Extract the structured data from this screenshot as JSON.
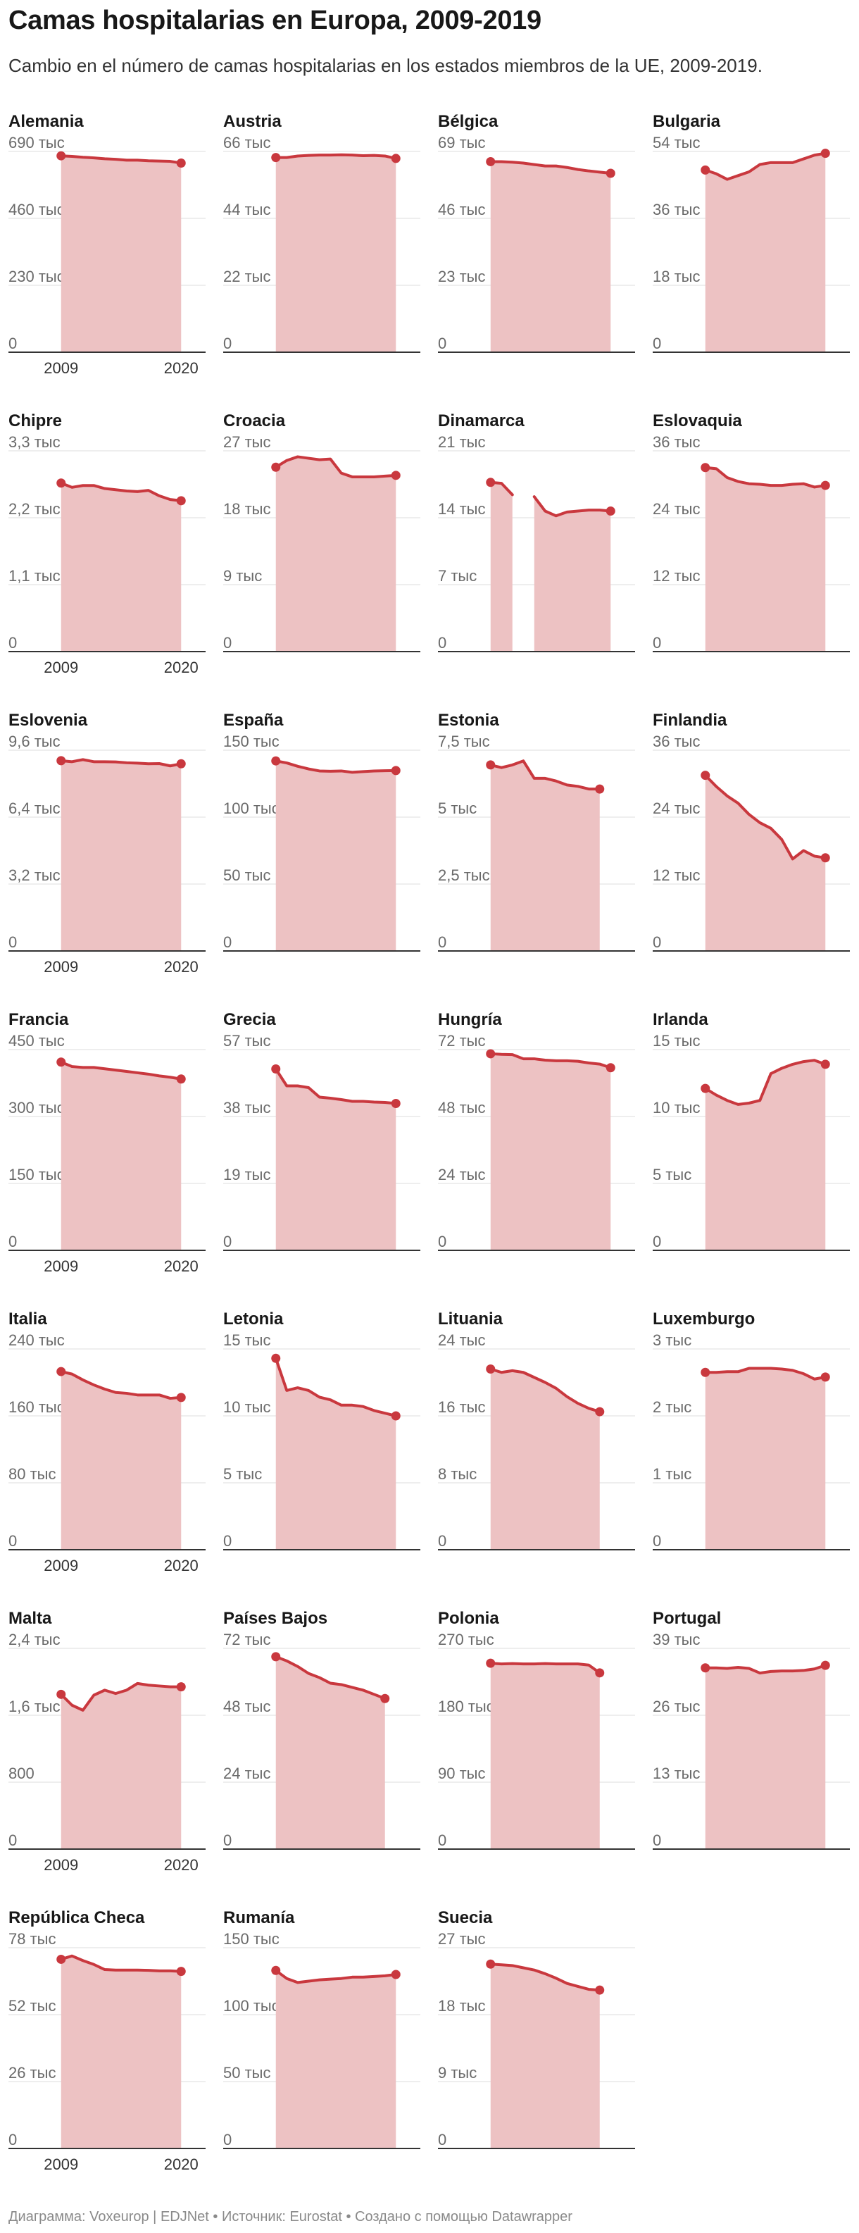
{
  "title": "Camas hospitalarias en Europa, 2009-2019",
  "subtitle": "Cambio en el número de camas hospitalarias en los estados miembros de la UE, 2009-2019.",
  "footer": "Диаграмма: Voxeurop | EDJNet • Источник: Eurostat • Создано с помощью Datawrapper",
  "colors": {
    "line": "#c9383e",
    "area": "#edc2c3",
    "grid": "#dcdcdc",
    "axis": "#333333"
  },
  "chart_data": {
    "type": "area",
    "layout": "small-multiples",
    "x_ticks": [
      "2009",
      "2020"
    ],
    "x_range": [
      2008.5,
      2020.5
    ],
    "panels": [
      {
        "name": "Alemania",
        "yticks": [
          "690 тыс",
          "460 тыс",
          "230 тыс",
          "0"
        ],
        "ymax": 690,
        "x": [
          2009,
          2010,
          2011,
          2012,
          2013,
          2014,
          2015,
          2016,
          2017,
          2018,
          2019,
          2020
        ],
        "y": [
          675,
          673,
          670,
          668,
          665,
          663,
          660,
          660,
          658,
          657,
          656,
          650
        ]
      },
      {
        "name": "Austria",
        "yticks": [
          "66 тыс",
          "44 тыс",
          "22 тыс",
          "0"
        ],
        "ymax": 66,
        "x": [
          2009,
          2010,
          2011,
          2012,
          2013,
          2014,
          2015,
          2016,
          2017,
          2018,
          2019,
          2020
        ],
        "y": [
          64,
          64,
          64.5,
          64.7,
          64.8,
          64.8,
          64.9,
          64.8,
          64.6,
          64.7,
          64.5,
          63.7
        ]
      },
      {
        "name": "Bélgica",
        "yticks": [
          "69 тыс",
          "46 тыс",
          "23 тыс",
          "0"
        ],
        "ymax": 69,
        "x": [
          2009,
          2010,
          2011,
          2012,
          2013,
          2014,
          2015,
          2016,
          2017,
          2018,
          2019,
          2020
        ],
        "y": [
          65.5,
          65.5,
          65.3,
          65,
          64.5,
          64,
          64,
          63.5,
          62.8,
          62.3,
          61.9,
          61.5
        ]
      },
      {
        "name": "Bulgaria",
        "yticks": [
          "54 тыс",
          "36 тыс",
          "18 тыс",
          "0"
        ],
        "ymax": 54,
        "x": [
          2009,
          2010,
          2011,
          2012,
          2013,
          2014,
          2015,
          2016,
          2017,
          2018,
          2019,
          2020
        ],
        "y": [
          49,
          48,
          46.5,
          47.5,
          48.5,
          50.5,
          51,
          51,
          51,
          52,
          53,
          53.5
        ]
      },
      {
        "name": "Chipre",
        "yticks": [
          "3,3 тыс",
          "2,2 тыс",
          "1,1 тыс",
          "0"
        ],
        "ymax": 3.3,
        "x": [
          2009,
          2010,
          2011,
          2012,
          2013,
          2014,
          2015,
          2016,
          2017,
          2018,
          2019,
          2020
        ],
        "y": [
          2.77,
          2.7,
          2.73,
          2.73,
          2.68,
          2.66,
          2.64,
          2.63,
          2.65,
          2.56,
          2.5,
          2.48
        ]
      },
      {
        "name": "Croacia",
        "yticks": [
          "27 тыс",
          "18 тыс",
          "9 тыс",
          "0"
        ],
        "ymax": 27,
        "x": [
          2009,
          2010,
          2011,
          2012,
          2013,
          2014,
          2015,
          2016,
          2017,
          2018,
          2019,
          2020
        ],
        "y": [
          24.8,
          25.7,
          26.2,
          26,
          25.8,
          25.9,
          24,
          23.5,
          23.5,
          23.5,
          23.6,
          23.7
        ]
      },
      {
        "name": "Dinamarca",
        "yticks": [
          "21 тыс",
          "14 тыс",
          "7 тыс",
          "0"
        ],
        "ymax": 21,
        "x": [
          2009,
          2010,
          2011,
          null,
          2013,
          2014,
          2015,
          2016,
          2017,
          2018,
          2019,
          2020
        ],
        "y": [
          17.7,
          17.6,
          16.4,
          null,
          16.2,
          14.7,
          14.2,
          14.6,
          14.7,
          14.8,
          14.8,
          14.7
        ]
      },
      {
        "name": "Eslovaquia",
        "yticks": [
          "36 тыс",
          "24 тыс",
          "12 тыс",
          "0"
        ],
        "ymax": 36,
        "x": [
          2009,
          2010,
          2011,
          2012,
          2013,
          2014,
          2015,
          2016,
          2017,
          2018,
          2019,
          2020
        ],
        "y": [
          33,
          32.8,
          31.2,
          30.5,
          30.1,
          30,
          29.8,
          29.8,
          30,
          30.1,
          29.5,
          29.8
        ]
      },
      {
        "name": "Eslovenia",
        "yticks": [
          "9,6 тыс",
          "6,4 тыс",
          "3,2 тыс",
          "0"
        ],
        "ymax": 9.6,
        "x": [
          2009,
          2010,
          2011,
          2012,
          2013,
          2014,
          2015,
          2016,
          2017,
          2018,
          2019,
          2020
        ],
        "y": [
          9.1,
          9.05,
          9.15,
          9.05,
          9.05,
          9.04,
          9,
          8.98,
          8.95,
          8.96,
          8.85,
          8.95
        ]
      },
      {
        "name": "España",
        "yticks": [
          "150 тыс",
          "100 тыс",
          "50 тыс",
          "0"
        ],
        "ymax": 150,
        "x": [
          2009,
          2010,
          2011,
          2012,
          2013,
          2014,
          2015,
          2016,
          2017,
          2018,
          2019,
          2020
        ],
        "y": [
          142,
          140.5,
          138,
          136,
          134.5,
          134.3,
          134.5,
          133.5,
          134,
          134.5,
          134.7,
          134.8
        ]
      },
      {
        "name": "Estonia",
        "yticks": [
          "7,5 тыс",
          "5 тыс",
          "2,5 тыс",
          "0"
        ],
        "ymax": 7.5,
        "x": [
          2009,
          2010,
          2011,
          2012,
          2013,
          2014,
          2015,
          2016,
          2017,
          2018,
          2019
        ],
        "y": [
          6.95,
          6.85,
          6.95,
          7.1,
          6.45,
          6.45,
          6.35,
          6.2,
          6.15,
          6.05,
          6.05
        ]
      },
      {
        "name": "Finlandia",
        "yticks": [
          "36 тыс",
          "24 тыс",
          "12 тыс",
          "0"
        ],
        "ymax": 36,
        "x": [
          2009,
          2010,
          2011,
          2012,
          2013,
          2014,
          2015,
          2016,
          2017,
          2018,
          2019,
          2020
        ],
        "y": [
          31.5,
          29.5,
          27.8,
          26.5,
          24.5,
          23,
          22,
          20,
          16.5,
          18,
          17,
          16.7
        ]
      },
      {
        "name": "Francia",
        "yticks": [
          "450 тыс",
          "300 тыс",
          "150 тыс",
          "0"
        ],
        "ymax": 450,
        "x": [
          2009,
          2010,
          2011,
          2012,
          2013,
          2014,
          2015,
          2016,
          2017,
          2018,
          2019,
          2020
        ],
        "y": [
          422,
          412,
          410,
          410,
          407,
          404,
          401,
          398,
          395,
          391,
          388,
          384
        ]
      },
      {
        "name": "Grecia",
        "yticks": [
          "57 тыс",
          "38 тыс",
          "19 тыс",
          "0"
        ],
        "ymax": 57,
        "x": [
          2009,
          2010,
          2011,
          2012,
          2013,
          2014,
          2015,
          2016,
          2017,
          2018,
          2019,
          2020
        ],
        "y": [
          51.5,
          46.7,
          46.7,
          46.2,
          43.5,
          43.2,
          42.8,
          42.3,
          42.3,
          42.1,
          42,
          41.7
        ]
      },
      {
        "name": "Hungría",
        "yticks": [
          "72 тыс",
          "48 тыс",
          "24 тыс",
          "0"
        ],
        "ymax": 72,
        "x": [
          2009,
          2010,
          2011,
          2012,
          2013,
          2014,
          2015,
          2016,
          2017,
          2018,
          2019,
          2020
        ],
        "y": [
          70.5,
          70.3,
          70.2,
          68.7,
          68.7,
          68.2,
          68,
          68,
          67.8,
          67.2,
          66.8,
          65.5
        ]
      },
      {
        "name": "Irlanda",
        "yticks": [
          "15 тыс",
          "10 тыс",
          "5 тыс",
          "0"
        ],
        "ymax": 15,
        "x": [
          2009,
          2010,
          2011,
          2012,
          2013,
          2014,
          2015,
          2016,
          2017,
          2018,
          2019,
          2020
        ],
        "y": [
          12.1,
          11.6,
          11.2,
          10.9,
          11,
          11.2,
          13.2,
          13.6,
          13.9,
          14.1,
          14.2,
          13.9
        ]
      },
      {
        "name": "Italia",
        "yticks": [
          "240 тыс",
          "160 тыс",
          "80 тыс",
          "0"
        ],
        "ymax": 240,
        "x": [
          2009,
          2010,
          2011,
          2012,
          2013,
          2014,
          2015,
          2016,
          2017,
          2018,
          2019,
          2020
        ],
        "y": [
          213,
          210,
          203,
          197,
          192,
          188,
          187,
          185,
          185,
          185,
          181,
          182
        ]
      },
      {
        "name": "Letonia",
        "yticks": [
          "15 тыс",
          "10 тыс",
          "5 тыс",
          "0"
        ],
        "ymax": 15,
        "x": [
          2009,
          2010,
          2011,
          2012,
          2013,
          2014,
          2015,
          2016,
          2017,
          2018,
          2019,
          2020
        ],
        "y": [
          14.3,
          11.9,
          12.1,
          11.9,
          11.4,
          11.2,
          10.8,
          10.8,
          10.7,
          10.4,
          10.2,
          10
        ]
      },
      {
        "name": "Lituania",
        "yticks": [
          "24 тыс",
          "16 тыс",
          "8 тыс",
          "0"
        ],
        "ymax": 24,
        "x": [
          2009,
          2010,
          2011,
          2012,
          2013,
          2014,
          2015,
          2016,
          2017,
          2018,
          2019
        ],
        "y": [
          21.6,
          21.2,
          21.4,
          21.2,
          20.6,
          20,
          19.3,
          18.3,
          17.5,
          16.9,
          16.5
        ]
      },
      {
        "name": "Luxemburgo",
        "yticks": [
          "3 тыс",
          "2 тыс",
          "1 тыс",
          "0"
        ],
        "ymax": 3,
        "x": [
          2009,
          2010,
          2011,
          2012,
          2013,
          2014,
          2015,
          2016,
          2017,
          2018,
          2019,
          2020
        ],
        "y": [
          2.65,
          2.65,
          2.66,
          2.66,
          2.71,
          2.71,
          2.71,
          2.7,
          2.68,
          2.63,
          2.55,
          2.58
        ]
      },
      {
        "name": "Malta",
        "yticks": [
          "2,4 тыс",
          "1,6 тыс",
          "800",
          "0"
        ],
        "ymax": 2.4,
        "x": [
          2009,
          2010,
          2011,
          2012,
          2013,
          2014,
          2015,
          2016,
          2017,
          2018,
          2019,
          2020
        ],
        "y": [
          1.85,
          1.72,
          1.66,
          1.84,
          1.9,
          1.86,
          1.9,
          1.98,
          1.96,
          1.95,
          1.94,
          1.94
        ]
      },
      {
        "name": "Países Bajos",
        "yticks": [
          "72 тыс",
          "48 тыс",
          "24 тыс",
          "0"
        ],
        "ymax": 72,
        "x": [
          2009,
          2010,
          2011,
          2012,
          2013,
          2014,
          2015,
          2016,
          2017,
          2018,
          2019
        ],
        "y": [
          69,
          67.5,
          65.5,
          63,
          61.5,
          59.5,
          59,
          58,
          57,
          55.5,
          54
        ]
      },
      {
        "name": "Polonia",
        "yticks": [
          "270 тыс",
          "180 тыс",
          "90 тыс",
          "0"
        ],
        "ymax": 270,
        "x": [
          2009,
          2010,
          2011,
          2012,
          2013,
          2014,
          2015,
          2016,
          2017,
          2018,
          2019
        ],
        "y": [
          250,
          249,
          249.5,
          249,
          249,
          249.5,
          249,
          249,
          249,
          247.5,
          237
        ]
      },
      {
        "name": "Portugal",
        "yticks": [
          "39 тыс",
          "26 тыс",
          "13 тыс",
          "0"
        ],
        "ymax": 39,
        "x": [
          2009,
          2010,
          2011,
          2012,
          2013,
          2014,
          2015,
          2016,
          2017,
          2018,
          2019,
          2020
        ],
        "y": [
          35.2,
          35.2,
          35.1,
          35.3,
          35.1,
          34.2,
          34.5,
          34.6,
          34.6,
          34.7,
          35,
          35.7
        ]
      },
      {
        "name": "República Checa",
        "yticks": [
          "78 тыс",
          "52 тыс",
          "26 тыс",
          "0"
        ],
        "ymax": 78,
        "x": [
          2009,
          2010,
          2011,
          2012,
          2013,
          2014,
          2015,
          2016,
          2017,
          2018,
          2019,
          2020
        ],
        "y": [
          73.5,
          74.8,
          73,
          71.5,
          69.5,
          69.3,
          69.3,
          69.3,
          69.2,
          69,
          69,
          68.8
        ]
      },
      {
        "name": "Rumanía",
        "yticks": [
          "150 тыс",
          "100 тыс",
          "50 тыс",
          "0"
        ],
        "ymax": 150,
        "x": [
          2009,
          2010,
          2011,
          2012,
          2013,
          2014,
          2015,
          2016,
          2017,
          2018,
          2019,
          2020
        ],
        "y": [
          133,
          127,
          124,
          125,
          126,
          126.5,
          127,
          128,
          128,
          128.5,
          129,
          130
        ]
      },
      {
        "name": "Suecia",
        "yticks": [
          "27 тыс",
          "18 тыс",
          "9 тыс",
          "0"
        ],
        "ymax": 27,
        "x": [
          2009,
          2010,
          2011,
          2012,
          2013,
          2014,
          2015,
          2016,
          2017,
          2018,
          2019
        ],
        "y": [
          24.8,
          24.7,
          24.6,
          24.3,
          24,
          23.5,
          22.9,
          22.2,
          21.8,
          21.4,
          21.3
        ]
      }
    ]
  }
}
